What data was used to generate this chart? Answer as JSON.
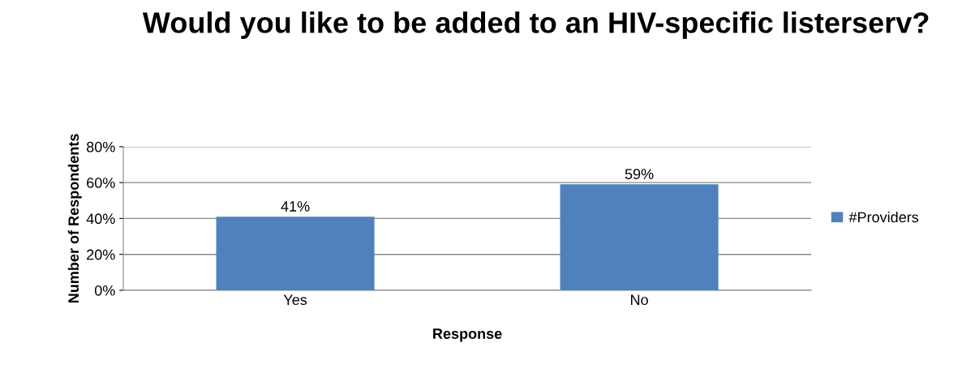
{
  "chart_data": {
    "type": "bar",
    "title": "Would you like to be added to an HIV-specific listerserv?",
    "xlabel": "Response",
    "ylabel": "Number of Respondents",
    "categories": [
      "Yes",
      "No"
    ],
    "series": [
      {
        "name": "#Providers",
        "color": "#4f81bd",
        "values": [
          41,
          59
        ],
        "value_labels": [
          "41%",
          "59%"
        ]
      }
    ],
    "ylim": [
      0,
      80
    ],
    "yticks": [
      {
        "value": 0,
        "label": "0%"
      },
      {
        "value": 20,
        "label": "20%"
      },
      {
        "value": 40,
        "label": "40%"
      },
      {
        "value": 60,
        "label": "60%"
      },
      {
        "value": 80,
        "label": "80%"
      }
    ],
    "grid": "y",
    "legend": "right"
  }
}
